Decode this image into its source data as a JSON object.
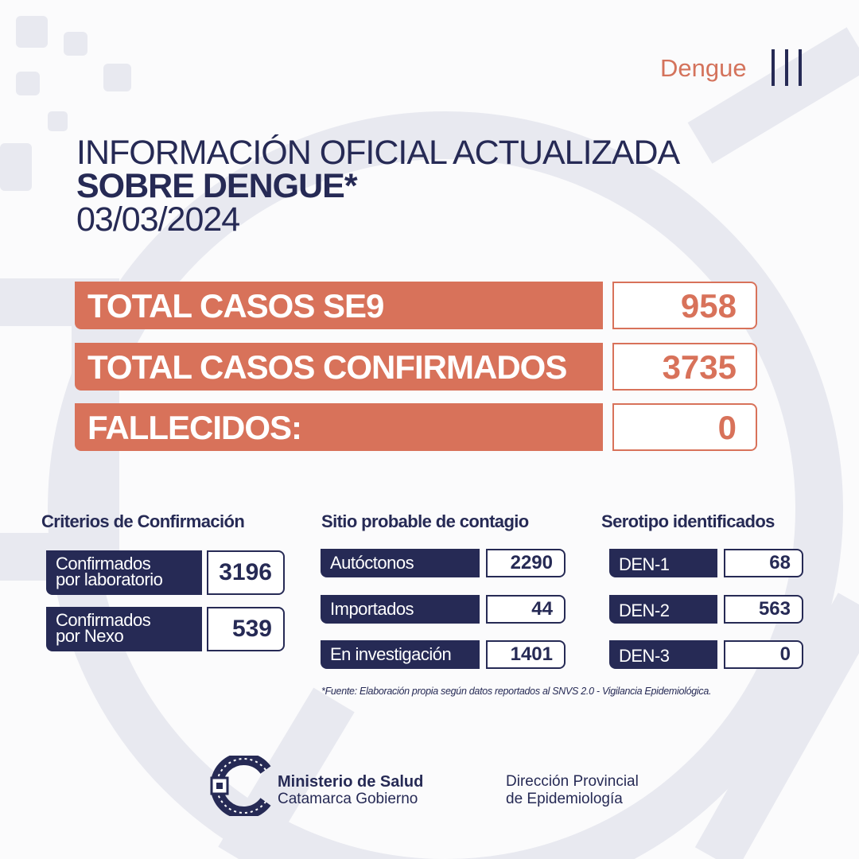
{
  "header": {
    "tag": "Dengue",
    "title_line1": "INFORMACIÓN OFICIAL ACTUALIZADA",
    "title_line2": "SOBRE DENGUE*",
    "date": "03/03/2024"
  },
  "totals": [
    {
      "label": "TOTAL CASOS SE9",
      "value": "958"
    },
    {
      "label": "TOTAL CASOS CONFIRMADOS",
      "value": "3735"
    },
    {
      "label": "FALLECIDOS:",
      "value": "0"
    }
  ],
  "criterios": {
    "title": "Criterios de Confirmación",
    "items": [
      {
        "label1": "Confirmados",
        "label2": "por laboratorio",
        "value": "3196"
      },
      {
        "label1": "Confirmados",
        "label2": "por Nexo",
        "value": "539"
      }
    ]
  },
  "sitio": {
    "title": "Sitio probable de contagio",
    "items": [
      {
        "label": "Autóctonos",
        "value": "2290"
      },
      {
        "label": "Importados",
        "value": "44"
      },
      {
        "label": "En investigación",
        "value": "1401"
      }
    ]
  },
  "serotipo": {
    "title": "Serotipo identificados",
    "items": [
      {
        "label": "DEN-1",
        "value": "68"
      },
      {
        "label": "DEN-2",
        "value": "563"
      },
      {
        "label": "DEN-3",
        "value": "0"
      }
    ]
  },
  "source": "*Fuente: Elaboración propia según datos reportados al SNVS 2.0 - Vigilancia Epidemiológica.",
  "footer": {
    "ministry_line1": "Ministerio de Salud",
    "ministry_line2": "Catamarca Gobierno",
    "direction_line1": "Dirección Provincial",
    "direction_line2": "de Epidemiología",
    "logo_icon": "catamarca-c-logo"
  },
  "colors": {
    "navy": "#262a55",
    "orange": "#d8725a",
    "pattern": "#e8e9f0"
  }
}
